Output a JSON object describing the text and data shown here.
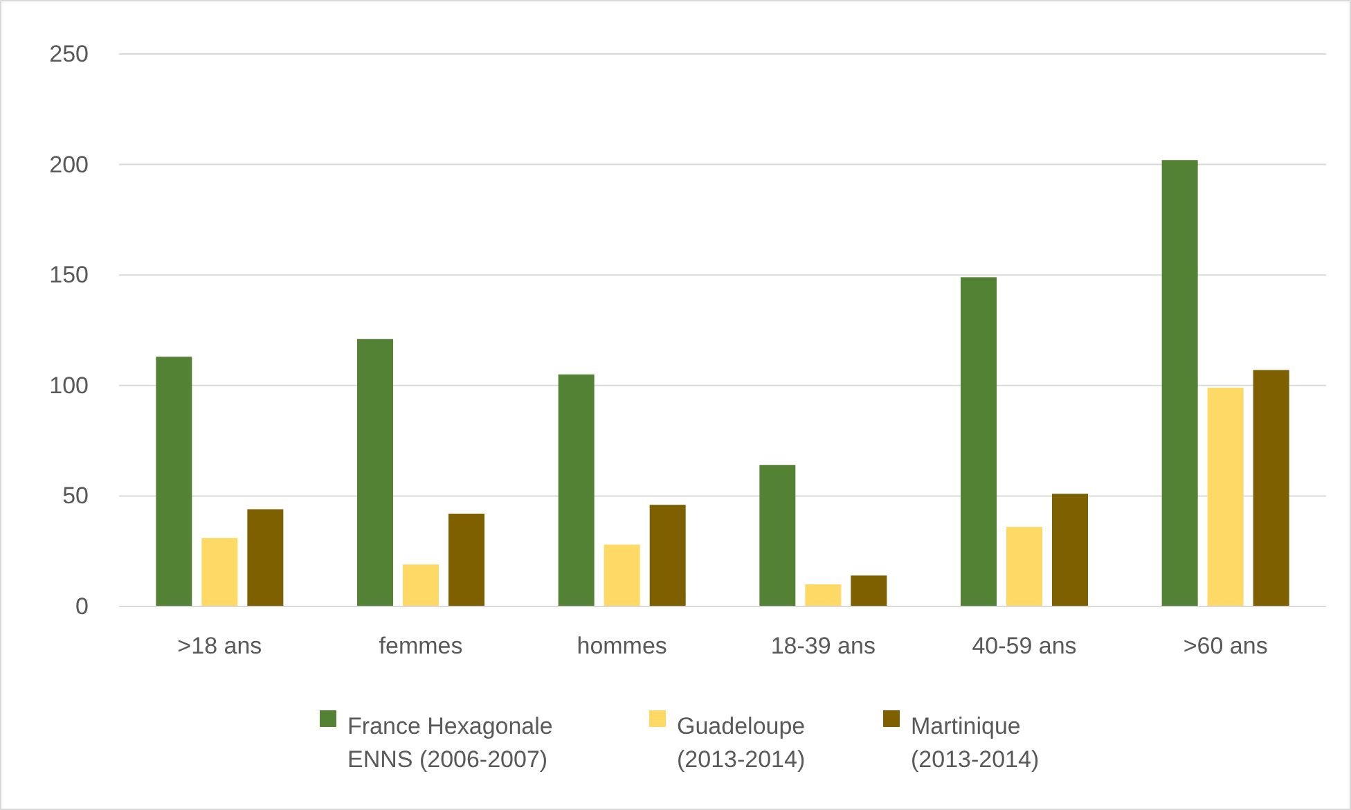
{
  "chart_data": {
    "type": "bar",
    "categories": [
      ">18 ans",
      "femmes",
      "hommes",
      "18-39 ans",
      "40-59 ans",
      ">60 ans"
    ],
    "series": [
      {
        "name": "France Hexagonale ENNS  (2006-2007)",
        "color": "#548235",
        "values": [
          113,
          121,
          105,
          64,
          149,
          202
        ]
      },
      {
        "name": "Guadeloupe (2013-2014)",
        "color": "#ffd966",
        "values": [
          31,
          19,
          28,
          10,
          36,
          99
        ]
      },
      {
        "name": "Martinique (2013-2014)",
        "color": "#7f6000",
        "values": [
          44,
          42,
          46,
          14,
          51,
          107
        ]
      }
    ],
    "ylim": [
      0,
      250
    ],
    "yticks": [
      0,
      50,
      100,
      150,
      200,
      250
    ],
    "grid": "y",
    "legend": "bottom"
  }
}
